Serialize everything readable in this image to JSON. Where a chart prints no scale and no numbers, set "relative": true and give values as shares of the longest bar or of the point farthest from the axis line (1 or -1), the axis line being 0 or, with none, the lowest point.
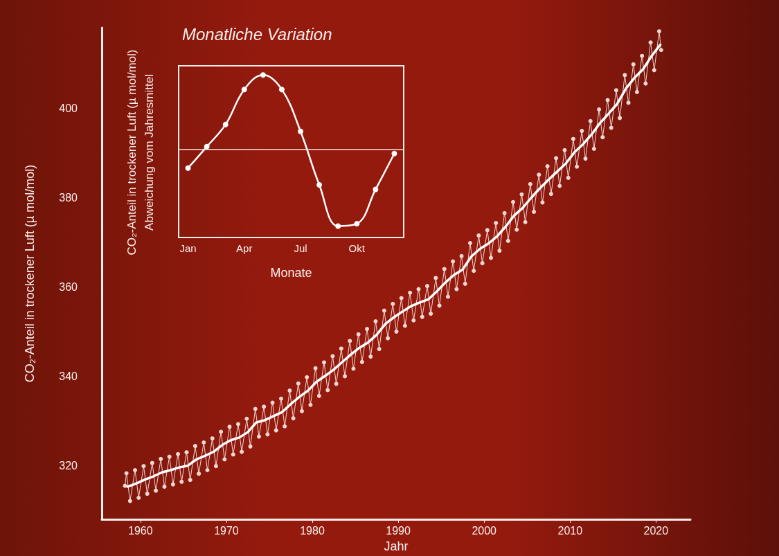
{
  "chart_data": [
    {
      "type": "line",
      "xlabel": "Jahr",
      "ylabel": "CO₂-Anteil in trockener Luft (µ mol/mol)",
      "xlim": [
        1955.5,
        2024
      ],
      "ylim": [
        308,
        418
      ],
      "xticks": [
        1960,
        1970,
        1980,
        1990,
        2000,
        2010,
        2020
      ],
      "yticks": [
        320,
        340,
        360,
        380,
        400
      ],
      "grid": false,
      "marker": "circle",
      "line_style": "solid",
      "series": [
        {
          "color": "#f0d8d2",
          "x": [
            1958.2,
            1958.37,
            1958.79,
            1959.37,
            1959.79,
            1960.37,
            1960.79,
            1961.37,
            1961.79,
            1962.37,
            1962.79,
            1963.37,
            1963.79,
            1964.37,
            1964.79,
            1965.37,
            1965.79,
            1966.37,
            1966.79,
            1967.37,
            1967.79,
            1968.37,
            1968.79,
            1969.37,
            1969.79,
            1970.37,
            1970.79,
            1971.37,
            1971.79,
            1972.37,
            1972.79,
            1973.37,
            1973.79,
            1974.37,
            1974.79,
            1975.37,
            1975.79,
            1976.37,
            1976.79,
            1977.37,
            1977.79,
            1978.37,
            1978.79,
            1979.37,
            1979.79,
            1980.37,
            1980.79,
            1981.37,
            1981.79,
            1982.37,
            1982.79,
            1983.37,
            1983.79,
            1984.37,
            1984.79,
            1985.37,
            1985.79,
            1986.37,
            1986.79,
            1987.37,
            1987.79,
            1988.37,
            1988.79,
            1989.37,
            1989.79,
            1990.37,
            1990.79,
            1991.37,
            1991.79,
            1992.37,
            1992.79,
            1993.37,
            1993.79,
            1994.37,
            1994.79,
            1995.37,
            1995.79,
            1996.37,
            1996.79,
            1997.37,
            1997.79,
            1998.37,
            1998.79,
            1999.37,
            1999.79,
            2000.37,
            2000.79,
            2001.37,
            2001.79,
            2002.37,
            2002.79,
            2003.37,
            2003.79,
            2004.37,
            2004.79,
            2005.37,
            2005.79,
            2006.37,
            2006.79,
            2007.37,
            2007.79,
            2008.37,
            2008.79,
            2009.37,
            2009.79,
            2010.37,
            2010.79,
            2011.37,
            2011.79,
            2012.37,
            2012.79,
            2013.37,
            2013.79,
            2014.37,
            2014.79,
            2015.37,
            2015.79,
            2016.37,
            2016.79,
            2017.37,
            2017.79,
            2018.37,
            2018.79,
            2019.37,
            2019.79,
            2020.37,
            2020.6
          ],
          "values": [
            315.5,
            318.3,
            312.1,
            319.0,
            312.8,
            319.9,
            313.7,
            320.6,
            314.4,
            321.5,
            315.3,
            322.0,
            315.8,
            322.6,
            316.4,
            323.0,
            316.8,
            324.4,
            318.2,
            325.2,
            319.0,
            326.1,
            319.9,
            327.6,
            321.4,
            328.7,
            322.5,
            329.3,
            323.1,
            330.5,
            324.3,
            332.7,
            326.5,
            333.2,
            327.0,
            334.1,
            327.9,
            335.0,
            328.8,
            336.8,
            330.6,
            338.4,
            332.2,
            339.8,
            333.6,
            341.8,
            335.6,
            343.1,
            336.9,
            344.5,
            338.3,
            346.2,
            340.0,
            347.9,
            341.7,
            349.4,
            343.2,
            350.6,
            344.4,
            352.3,
            346.1,
            354.7,
            348.5,
            356.2,
            350.0,
            357.5,
            351.3,
            358.7,
            352.5,
            359.5,
            353.3,
            360.2,
            354.0,
            362.0,
            355.8,
            364.0,
            357.8,
            365.7,
            359.5,
            366.9,
            360.7,
            369.8,
            363.6,
            371.5,
            365.3,
            372.7,
            366.5,
            374.3,
            368.1,
            376.5,
            370.3,
            379.0,
            372.8,
            380.7,
            374.5,
            383.0,
            376.8,
            385.1,
            378.9,
            387.0,
            380.8,
            388.8,
            382.6,
            390.6,
            384.4,
            393.1,
            386.9,
            394.9,
            388.7,
            397.1,
            390.9,
            399.7,
            393.5,
            401.8,
            395.6,
            404.0,
            397.8,
            407.4,
            401.2,
            409.8,
            403.6,
            411.7,
            405.5,
            414.7,
            408.5,
            417.2,
            413.0
          ]
        },
        {
          "color": "#ffffff",
          "marker": "none",
          "x": [
            1958.5,
            1959.5,
            1960.5,
            1961.5,
            1962.5,
            1963.5,
            1964.5,
            1965.5,
            1966.5,
            1967.5,
            1968.5,
            1969.5,
            1970.5,
            1971.5,
            1972.5,
            1973.5,
            1974.5,
            1975.5,
            1976.5,
            1977.5,
            1978.5,
            1979.5,
            1980.5,
            1981.5,
            1982.5,
            1983.5,
            1984.5,
            1985.5,
            1986.5,
            1987.5,
            1988.5,
            1989.5,
            1990.5,
            1991.5,
            1992.5,
            1993.5,
            1994.5,
            1995.5,
            1996.5,
            1997.5,
            1998.5,
            1999.5,
            2000.5,
            2001.5,
            2002.5,
            2003.5,
            2004.5,
            2005.5,
            2006.5,
            2007.5,
            2008.5,
            2009.5,
            2010.5,
            2011.5,
            2012.5,
            2013.5,
            2014.5,
            2015.5,
            2016.5,
            2017.5,
            2018.5,
            2019.5,
            2020.5
          ],
          "values": [
            315.3,
            316.0,
            316.9,
            317.6,
            318.5,
            319.0,
            319.6,
            320.0,
            321.4,
            322.2,
            323.1,
            324.6,
            325.7,
            326.3,
            327.5,
            329.7,
            330.2,
            331.1,
            332.0,
            333.8,
            335.4,
            336.8,
            338.8,
            340.1,
            341.5,
            343.2,
            344.9,
            346.4,
            347.6,
            349.3,
            351.7,
            353.2,
            354.5,
            355.7,
            356.5,
            357.2,
            359.0,
            361.0,
            362.7,
            363.9,
            366.8,
            368.5,
            369.7,
            371.3,
            373.5,
            376.0,
            377.7,
            380.0,
            382.1,
            384.0,
            385.8,
            387.6,
            390.1,
            391.9,
            394.1,
            396.7,
            398.8,
            401.0,
            404.4,
            406.8,
            408.7,
            411.7,
            414.2
          ]
        }
      ]
    },
    {
      "type": "line",
      "title": "Monatliche Variation",
      "xlabel": "Monate",
      "ylabel": "CO₂-Anteil in trockener Luft (µ mol/mol)\nAbweichung vom Jahresmittel",
      "relative": true,
      "grid": false,
      "marker": "circle",
      "categories": [
        "Jan",
        null,
        null,
        "Apr",
        null,
        null,
        "Jul",
        null,
        null,
        "Okt",
        null,
        null
      ],
      "ref_lines": [
        {
          "axis": "y",
          "value": 0,
          "color": "#f3e3df"
        }
      ],
      "series": [
        {
          "color": "#ffffff",
          "values": [
            -0.24,
            0.04,
            0.33,
            0.79,
            0.98,
            0.79,
            0.24,
            -0.46,
            -1,
            -0.97,
            -0.52,
            -0.05
          ]
        }
      ]
    }
  ]
}
